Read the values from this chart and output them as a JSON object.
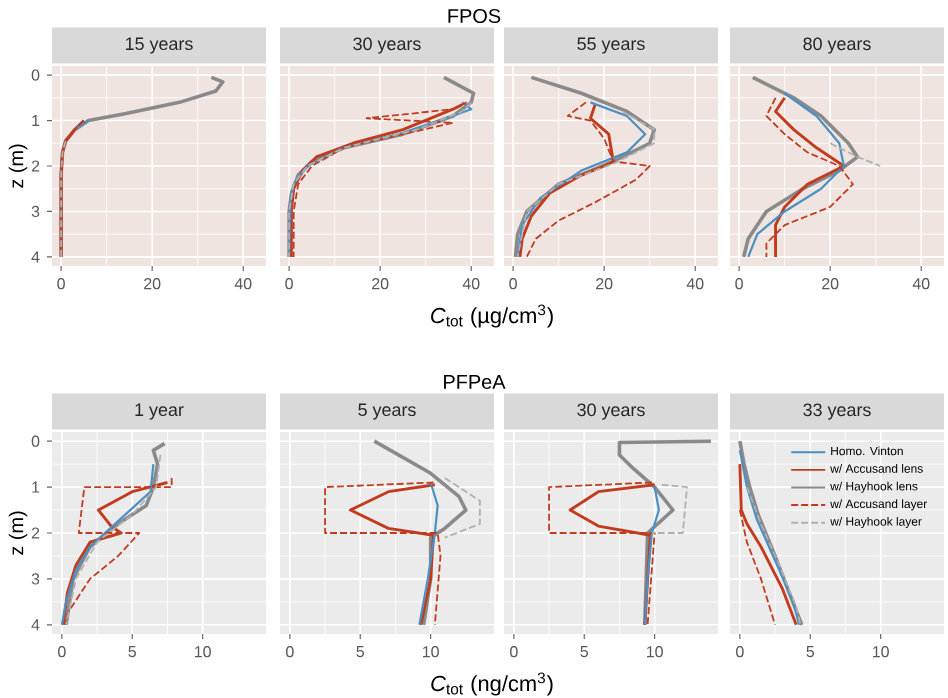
{
  "chart_data": [
    {
      "type": "line",
      "title": "15 years",
      "ylabel": "z (m)",
      "xlim": [
        -2,
        45
      ],
      "xticks": [
        0,
        20,
        40
      ],
      "ylim": [
        4.2,
        -0.2
      ],
      "yticks": [
        0,
        1,
        2,
        3,
        4
      ],
      "grid": true,
      "series": [
        {
          "color": "#4a90c2",
          "line_style": "solid",
          "x": [
            6,
            3
          ],
          "values": [
            1.0,
            1.2
          ]
        },
        {
          "color": "#c23b1e",
          "line_style": "solid",
          "x": [
            5,
            3,
            1,
            0.3,
            0,
            0
          ],
          "values": [
            1.0,
            1.2,
            1.45,
            1.7,
            2.2,
            4
          ]
        },
        {
          "color": "#8a8a8a",
          "line_style": "solid",
          "x": [
            33,
            35.5,
            34,
            26,
            14,
            6,
            3,
            1,
            0.3,
            0,
            0
          ],
          "values": [
            0.05,
            0.15,
            0.35,
            0.6,
            0.85,
            1.0,
            1.2,
            1.45,
            1.7,
            2.2,
            4
          ]
        },
        {
          "color": "#c23b1e",
          "line_style": "dashed",
          "x": [
            5,
            3,
            1
          ],
          "values": [
            1.0,
            1.2,
            1.45
          ]
        },
        {
          "color": "#b0b0b0",
          "line_style": "dashed",
          "x": [
            1,
            0.3,
            0,
            0
          ],
          "values": [
            1.45,
            1.7,
            2.2,
            4
          ]
        }
      ]
    },
    {
      "type": "line",
      "title": "30 years",
      "subtitle": "FPOS",
      "xlabel": "*C*$_{tot}$ (µg/cm$^{3}$)",
      "xlim": [
        -2,
        45
      ],
      "xticks": [
        0,
        20,
        40
      ],
      "ylim": [
        4.2,
        -0.2
      ],
      "yticks": [
        0,
        1,
        2,
        3,
        4
      ],
      "grid": true,
      "tick_labels": "x",
      "series": [
        {
          "color": "#4a90c2",
          "line_style": "solid",
          "x": [
            38,
            40,
            33,
            24,
            12,
            4,
            1,
            0.3,
            0
          ],
          "values": [
            0.6,
            0.75,
            1.0,
            1.3,
            1.6,
            2.0,
            2.4,
            2.8,
            4
          ]
        },
        {
          "color": "#c23b1e",
          "line_style": "solid",
          "x": [
            38,
            36,
            25,
            14,
            6,
            3,
            1,
            0.5,
            0.5
          ],
          "values": [
            0.65,
            0.75,
            1.2,
            1.5,
            1.8,
            2.1,
            2.5,
            3,
            4
          ]
        },
        {
          "color": "#8a8a8a",
          "line_style": "solid",
          "x": [
            34,
            40.5,
            40,
            36,
            25,
            12,
            5,
            2,
            0.5,
            0,
            0
          ],
          "values": [
            0.05,
            0.4,
            0.6,
            0.9,
            1.3,
            1.6,
            1.9,
            2.2,
            2.6,
            3,
            4
          ]
        },
        {
          "color": "#c23b1e",
          "line_style": "dashed",
          "x": [
            39,
            36,
            17,
            36,
            25,
            12,
            5,
            2,
            1,
            1
          ],
          "values": [
            0.6,
            0.75,
            0.95,
            1.05,
            1.3,
            1.6,
            2.0,
            2.4,
            3,
            4
          ]
        },
        {
          "color": "#b0b0b0",
          "line_style": "dashed",
          "x": [
            40,
            38,
            28,
            12,
            4,
            1,
            0,
            0
          ],
          "values": [
            0.6,
            0.8,
            1.2,
            1.6,
            2,
            2.4,
            3,
            4
          ]
        }
      ]
    },
    {
      "type": "line",
      "title": "55 years",
      "xlim": [
        -2,
        45
      ],
      "xticks": [
        0,
        20,
        40
      ],
      "ylim": [
        4.2,
        -0.2
      ],
      "yticks": [
        0,
        1,
        2,
        3,
        4
      ],
      "grid": true,
      "tick_labels": "x",
      "series": [
        {
          "color": "#4a90c2",
          "line_style": "solid",
          "x": [
            17,
            25,
            29,
            25,
            15,
            6,
            2,
            1
          ],
          "values": [
            0.6,
            0.9,
            1.3,
            1.7,
            2.1,
            2.7,
            3.3,
            4
          ]
        },
        {
          "color": "#c23b1e",
          "line_style": "solid",
          "x": [
            18,
            17,
            21,
            22,
            20,
            15,
            8,
            4,
            2,
            1.5
          ],
          "values": [
            0.65,
            0.95,
            1.3,
            1.9,
            2.0,
            2.2,
            2.6,
            3.1,
            3.6,
            4
          ]
        },
        {
          "color": "#8a8a8a",
          "line_style": "solid",
          "x": [
            4,
            15,
            25,
            31,
            30,
            22,
            10,
            3,
            1,
            0.5
          ],
          "values": [
            0.05,
            0.4,
            0.8,
            1.2,
            1.5,
            1.9,
            2.4,
            3,
            3.5,
            4
          ]
        },
        {
          "color": "#c23b1e",
          "line_style": "dashed",
          "x": [
            16,
            12,
            17,
            20,
            22,
            30,
            27,
            18,
            10,
            5,
            3
          ],
          "values": [
            0.6,
            0.9,
            1.0,
            1.4,
            1.9,
            2.0,
            2.3,
            2.8,
            3.2,
            3.6,
            4
          ]
        },
        {
          "color": "#b0b0b0",
          "line_style": "dashed",
          "x": [
            24,
            31,
            31,
            22,
            10,
            3,
            1
          ],
          "values": [
            0.8,
            1.2,
            1.5,
            1.95,
            2.4,
            3,
            4
          ]
        }
      ]
    },
    {
      "type": "line",
      "title": "80 years",
      "xlim": [
        -2,
        45
      ],
      "xticks": [
        0,
        20,
        40
      ],
      "ylim": [
        4.2,
        -0.2
      ],
      "yticks": [
        0,
        1,
        2,
        3,
        4
      ],
      "grid": true,
      "tick_labels": "x",
      "series": [
        {
          "color": "#4a90c2",
          "line_style": "solid",
          "x": [
            10,
            17,
            22,
            23,
            18,
            10,
            4,
            2
          ],
          "values": [
            0.4,
            0.9,
            1.5,
            2.0,
            2.5,
            3,
            3.5,
            4
          ]
        },
        {
          "color": "#c23b1e",
          "line_style": "solid",
          "x": [
            10,
            8,
            12,
            17,
            23,
            15,
            10,
            8,
            8
          ],
          "values": [
            0.5,
            0.8,
            1.2,
            1.6,
            2.0,
            2.4,
            2.9,
            3.3,
            4
          ]
        },
        {
          "color": "#8a8a8a",
          "line_style": "solid",
          "x": [
            3,
            12,
            18,
            24,
            26,
            22,
            14,
            6,
            2,
            1
          ],
          "values": [
            0.05,
            0.5,
            0.9,
            1.5,
            1.8,
            2.1,
            2.5,
            3,
            3.6,
            4
          ]
        },
        {
          "color": "#c23b1e",
          "line_style": "dashed",
          "x": [
            8,
            6,
            10,
            15,
            22,
            25,
            20,
            10,
            6,
            6
          ],
          "values": [
            0.5,
            0.9,
            1.3,
            1.7,
            2.0,
            2.4,
            2.9,
            3.3,
            3.7,
            4
          ]
        },
        {
          "color": "#b0b0b0",
          "line_style": "dashed",
          "x": [
            20,
            26,
            31
          ],
          "values": [
            1.5,
            1.8,
            2.0
          ]
        }
      ]
    },
    {
      "type": "line",
      "title": "1 year",
      "ylabel": "z (m)",
      "xlim": [
        -0.7,
        14.5
      ],
      "xticks": [
        0,
        5,
        10
      ],
      "ylim": [
        4.2,
        -0.2
      ],
      "yticks": [
        0,
        1,
        2,
        3,
        4
      ],
      "grid": true,
      "series": [
        {
          "color": "#4a90c2",
          "line_style": "solid",
          "x": [
            6.5,
            6.3,
            4.5,
            2,
            1,
            0.3,
            0
          ],
          "values": [
            0.5,
            1.1,
            1.6,
            2.3,
            2.8,
            3.5,
            4
          ]
        },
        {
          "color": "#c23b1e",
          "line_style": "solid",
          "x": [
            7.5,
            5,
            2.6,
            3.5,
            4.2,
            2,
            1,
            0.4,
            0.1
          ],
          "values": [
            0.9,
            1.1,
            1.5,
            1.85,
            2.0,
            2.2,
            2.7,
            3.3,
            4
          ]
        },
        {
          "color": "#8a8a8a",
          "line_style": "solid",
          "x": [
            7.3,
            6.5,
            6.8,
            6.5,
            6,
            4,
            2,
            0.8,
            0.3
          ],
          "values": [
            0.05,
            0.2,
            0.5,
            1.0,
            1.4,
            1.8,
            2.3,
            3,
            4
          ]
        },
        {
          "color": "#c23b1e",
          "line_style": "dashed",
          "x": [
            7.8,
            7.8,
            1.6,
            1.2,
            5.5,
            4,
            2,
            0.5,
            0.2
          ],
          "values": [
            0.8,
            1.0,
            1.0,
            2.0,
            2.0,
            2.5,
            3,
            3.7,
            4
          ]
        },
        {
          "color": "#b0b0b0",
          "line_style": "dashed",
          "x": [
            7,
            6.7,
            5,
            2.5,
            1,
            0.3
          ],
          "values": [
            0.3,
            1.0,
            1.6,
            2.2,
            3,
            4
          ]
        }
      ]
    },
    {
      "type": "line",
      "title": "5 years",
      "subtitle": "PFPeA",
      "xlabel": "*C*$_{tot}$ (ng/cm$^{3}$)",
      "xlim": [
        -0.7,
        14.5
      ],
      "xticks": [
        0,
        5,
        10
      ],
      "ylim": [
        4.2,
        -0.2
      ],
      "yticks": [
        0,
        1,
        2,
        3,
        4
      ],
      "grid": true,
      "tick_labels": "x",
      "series": [
        {
          "color": "#4a90c2",
          "line_style": "solid",
          "x": [
            10,
            10.5,
            10.3,
            9.8,
            9.2
          ],
          "values": [
            0.9,
            1.4,
            2,
            3,
            4
          ]
        },
        {
          "color": "#c23b1e",
          "line_style": "solid",
          "x": [
            10.3,
            7,
            4.3,
            7,
            10.2,
            10,
            9.3
          ],
          "values": [
            0.95,
            1.1,
            1.5,
            1.9,
            2.05,
            3,
            4
          ]
        },
        {
          "color": "#8a8a8a",
          "line_style": "solid",
          "x": [
            6,
            10,
            12,
            12.5,
            11,
            10,
            10,
            9.5
          ],
          "values": [
            0.0,
            0.7,
            1.2,
            1.5,
            1.9,
            2.1,
            3,
            4
          ]
        },
        {
          "color": "#c23b1e",
          "line_style": "dashed",
          "x": [
            10.2,
            2.5,
            2.5,
            10.5,
            10.7,
            10.3
          ],
          "values": [
            0.9,
            1.0,
            2.0,
            2.0,
            2.5,
            4
          ]
        },
        {
          "color": "#b0b0b0",
          "line_style": "dashed",
          "x": [
            11,
            13.5,
            13.5,
            11
          ],
          "values": [
            0.8,
            1.3,
            1.8,
            2.1
          ]
        }
      ]
    },
    {
      "type": "line",
      "title": "30 years",
      "xlim": [
        -0.7,
        14.5
      ],
      "xticks": [
        0,
        5,
        10
      ],
      "ylim": [
        4.2,
        -0.2
      ],
      "yticks": [
        0,
        1,
        2,
        3,
        4
      ],
      "grid": true,
      "tick_labels": "x",
      "series": [
        {
          "color": "#4a90c2",
          "line_style": "solid",
          "x": [
            10,
            10.3,
            9.8,
            9.5,
            9.3
          ],
          "values": [
            1.0,
            1.5,
            2.0,
            3,
            4
          ]
        },
        {
          "color": "#c23b1e",
          "line_style": "solid",
          "x": [
            10,
            6,
            4,
            6,
            9.7,
            9.5,
            9.3
          ],
          "values": [
            0.95,
            1.1,
            1.5,
            1.85,
            2.05,
            3,
            4
          ]
        },
        {
          "color": "#8a8a8a",
          "line_style": "solid",
          "x": [
            14,
            7.5,
            7.5,
            8.5,
            10,
            11.3,
            9.5,
            9.4,
            9.3
          ],
          "values": [
            0.0,
            0.03,
            0.3,
            0.6,
            1.0,
            1.5,
            2.0,
            3,
            4
          ]
        },
        {
          "color": "#c23b1e",
          "line_style": "dashed",
          "x": [
            9.8,
            2.5,
            2.5,
            10,
            9.5
          ],
          "values": [
            0.9,
            1.0,
            2.0,
            2.0,
            4
          ]
        },
        {
          "color": "#b0b0b0",
          "line_style": "dashed",
          "x": [
            10.5,
            12.3,
            12,
            9.8
          ],
          "values": [
            0.95,
            1.0,
            2.0,
            2.0
          ]
        }
      ]
    },
    {
      "type": "line",
      "title": "33 years",
      "xlim": [
        -0.7,
        14.5
      ],
      "xticks": [
        0,
        5,
        10
      ],
      "ylim": [
        4.2,
        -0.2
      ],
      "yticks": [
        0,
        1,
        2,
        3,
        4
      ],
      "grid": true,
      "tick_labels": "x",
      "legend": "top right",
      "series": [
        {
          "name": "Homo. Vinton",
          "color": "#4a90c2",
          "line_style": "solid",
          "x": [
            0,
            0.5,
            1.2,
            2.5,
            3.8,
            4.2
          ],
          "values": [
            0.2,
            1.0,
            1.7,
            2.6,
            3.5,
            4
          ]
        },
        {
          "name": "w/ Accusand lens",
          "color": "#c23b1e",
          "line_style": "solid",
          "x": [
            0,
            0.1,
            0.5,
            1.5,
            3,
            4
          ],
          "values": [
            0.5,
            1.5,
            1.8,
            2.3,
            3.2,
            4
          ]
        },
        {
          "name": "w/ Hayhook lens",
          "color": "#8a8a8a",
          "line_style": "solid",
          "x": [
            0,
            0.3,
            0.7,
            1.3,
            2.5,
            3.5,
            4.4
          ],
          "values": [
            0,
            0.5,
            1.0,
            1.6,
            2.5,
            3.3,
            4
          ]
        },
        {
          "name": "w/ Accusand layer",
          "color": "#c23b1e",
          "line_style": "dashed",
          "x": [
            0,
            0.5,
            1.5,
            2.5
          ],
          "values": [
            1.5,
            2.2,
            3,
            4
          ]
        },
        {
          "name": "w/ Hayhook layer",
          "color": "#b0b0b0",
          "line_style": "dashed",
          "x": [
            0.5,
            1.5,
            2.8,
            4,
            4.3
          ],
          "values": [
            1.0,
            1.8,
            2.7,
            3.6,
            4
          ]
        }
      ]
    }
  ]
}
